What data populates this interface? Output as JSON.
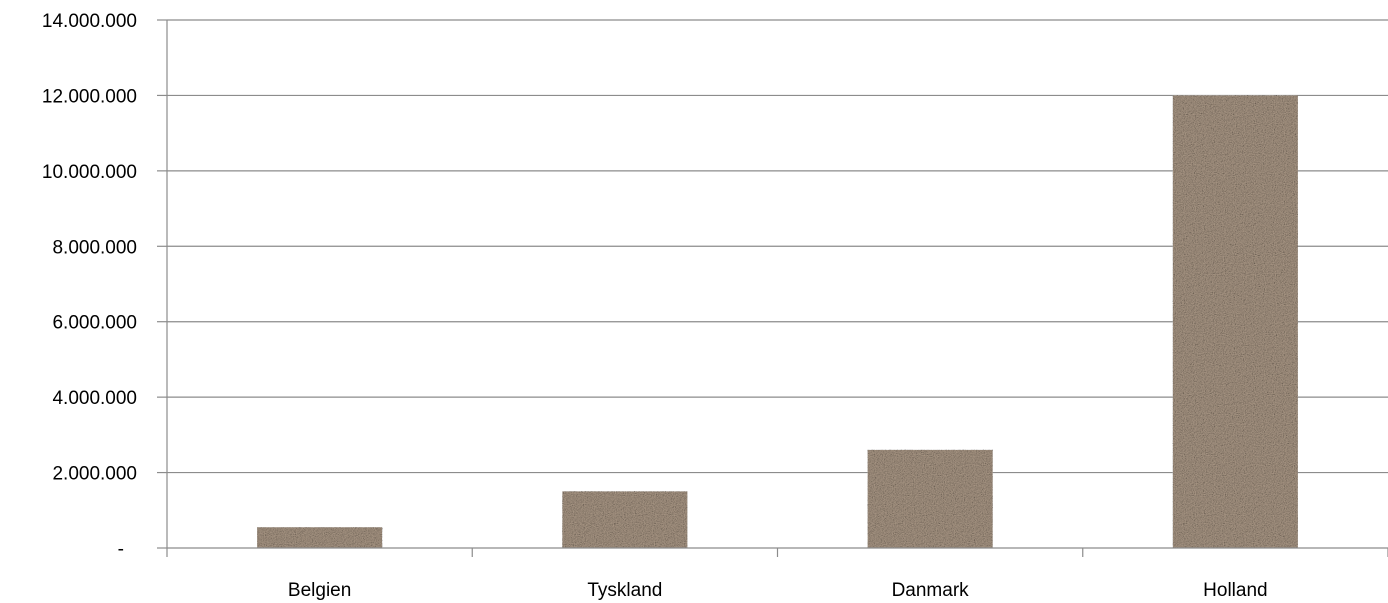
{
  "chart_data": {
    "type": "bar",
    "title": "",
    "xlabel": "",
    "ylabel": "",
    "categories": [
      "Belgien",
      "Tyskland",
      "Danmark",
      "Holland"
    ],
    "values": [
      550000,
      1500000,
      2600000,
      12000000
    ],
    "ylim": [
      0,
      14000000
    ],
    "ytick_values": [
      0,
      2000000,
      4000000,
      6000000,
      8000000,
      10000000,
      12000000,
      14000000
    ],
    "ytick_labels": [
      "-",
      "2.000.000",
      "4.000.000",
      "6.000.000",
      "8.000.000",
      "10.000.000",
      "12.000.000",
      "14.000.000"
    ],
    "grid": true,
    "legend": "none",
    "bar_color": "#a89684",
    "bar_fill": "granite-texture",
    "gridline_color": "#8c8c8c"
  }
}
